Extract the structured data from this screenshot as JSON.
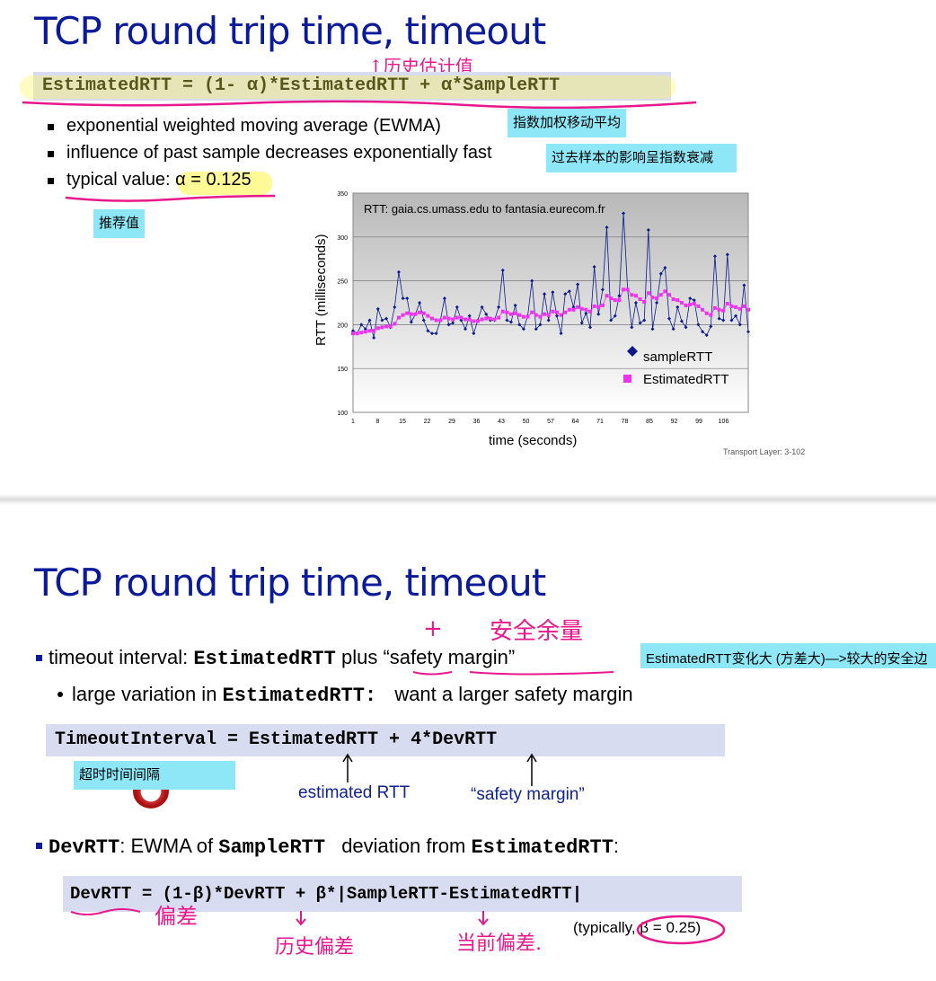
{
  "slide1": {
    "title": "TCP round trip time, timeout",
    "formula": "EstimatedRTT = (1- α)*EstimatedRTT + α*SampleRTT",
    "annotation_history": "↑历史估计值",
    "bullets": [
      "exponential weighted moving average (EWMA)",
      "influence of past sample decreases exponentially fast",
      "typical value: α = 0.125"
    ],
    "notes": {
      "ewma": "指数加权移动平均",
      "influence": "过去样本的影响呈指数衰减",
      "recommended": "推荐值"
    },
    "footer": "Transport Layer: 3-102"
  },
  "chart_data": {
    "type": "line",
    "title": "RTT: gaia.cs.umass.edu to fantasia.eurecom.fr",
    "xlabel": "time (seconds)",
    "ylabel": "RTT (milliseconds)",
    "xlim": [
      1,
      113
    ],
    "ylim": [
      100,
      350
    ],
    "x_ticks": [
      "1",
      "8",
      "15",
      "22",
      "29",
      "36",
      "43",
      "50",
      "57",
      "64",
      "71",
      "78",
      "85",
      "92",
      "99",
      "106"
    ],
    "y_ticks": [
      "100",
      "150",
      "200",
      "250",
      "300",
      "350"
    ],
    "legend_position": "bottom-right",
    "colors": {
      "sampleRTT": "#0a1a8a",
      "EstimatedRTT": "#ee33ee"
    },
    "series": [
      {
        "name": "sampleRTT",
        "values": [
          193,
          190,
          200,
          195,
          205,
          185,
          218,
          205,
          207,
          197,
          220,
          260,
          230,
          230,
          203,
          212,
          225,
          205,
          193,
          190,
          190,
          205,
          230,
          200,
          202,
          220,
          205,
          195,
          210,
          190,
          205,
          220,
          212,
          205,
          205,
          220,
          262,
          205,
          203,
          222,
          200,
          195,
          210,
          250,
          195,
          200,
          235,
          205,
          237,
          210,
          190,
          235,
          238,
          220,
          246,
          202,
          213,
          197,
          266,
          212,
          240,
          311,
          205,
          210,
          233,
          327,
          240,
          197,
          225,
          202,
          205,
          308,
          195,
          225,
          258,
          265,
          207,
          195,
          220,
          204,
          197,
          230,
          228,
          200,
          192,
          188,
          198,
          278,
          207,
          205,
          280,
          205,
          210,
          200,
          245,
          192
        ]
      },
      {
        "name": "EstimatedRTT",
        "values": [
          190,
          190,
          191,
          192,
          193,
          193,
          196,
          197,
          198,
          198,
          201,
          208,
          211,
          213,
          212,
          212,
          214,
          213,
          210,
          207,
          205,
          205,
          208,
          207,
          206,
          208,
          208,
          206,
          206,
          204,
          204,
          206,
          207,
          207,
          206,
          208,
          215,
          214,
          212,
          213,
          211,
          209,
          209,
          214,
          211,
          209,
          212,
          211,
          215,
          214,
          211,
          214,
          217,
          217,
          220,
          218,
          217,
          215,
          221,
          220,
          222,
          233,
          230,
          228,
          228,
          240,
          240,
          234,
          233,
          229,
          226,
          236,
          231,
          230,
          234,
          238,
          234,
          229,
          228,
          225,
          222,
          223,
          224,
          221,
          217,
          213,
          211,
          219,
          217,
          216,
          224,
          221,
          220,
          218,
          221,
          217
        ]
      }
    ]
  },
  "slide2": {
    "title": "TCP round trip time, timeout",
    "line1_prefix": "timeout interval: ",
    "line1_code": "EstimatedRTT",
    "line1_plus": "plus",
    "line1_suffix": "“safety margin”",
    "hand_plus": "+",
    "hand_safety": "安全余量",
    "note_variation": "EstimatedRTT变化大 (方差大)—>较大的安全边",
    "line2_prefix": "large variation in ",
    "line2_code": "EstimatedRTT:",
    "line2_suffix": "want a larger safety margin",
    "formula_timeout": "TimeoutInterval = EstimatedRTT + 4*DevRTT",
    "note_timeout": "超时时间间隔",
    "label_est": "estimated RTT",
    "label_safety": "“safety margin”",
    "line3_code1": "DevRTT",
    "line3_mid": ": EWMA of ",
    "line3_code2": "SampleRTT",
    "line3_mid2": " deviation from ",
    "line3_code3": "EstimatedRTT",
    "line3_end": ":",
    "formula_dev": "DevRTT = (1-β)*DevRTT + β*|SampleRTT-EstimatedRTT|",
    "typically": "(typically, β = 0.25)",
    "hand_dev": "偏差",
    "hand_hist_dev": "历史偏差",
    "hand_cur_dev": "当前偏差."
  }
}
